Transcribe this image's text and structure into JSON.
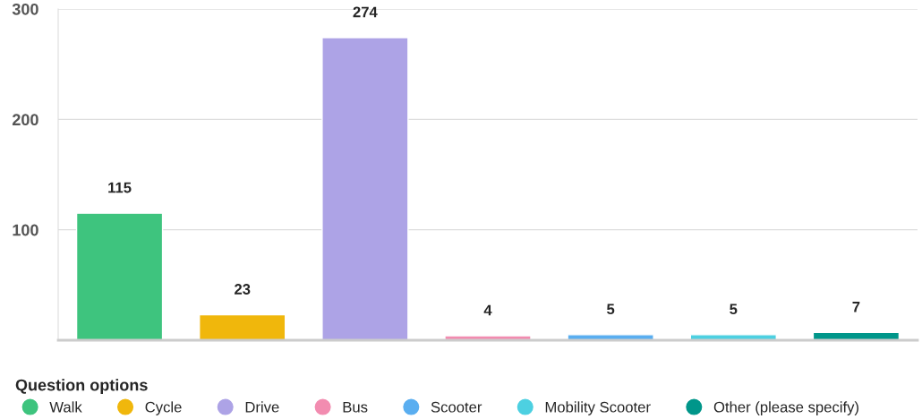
{
  "chart_data": {
    "type": "bar",
    "categories": [
      null,
      null,
      null,
      null,
      null,
      null,
      null
    ],
    "series": [
      {
        "name": "Walk",
        "color": "#3ec47e",
        "values": [
          115,
          null,
          null,
          null,
          null,
          null,
          null
        ]
      },
      {
        "name": "Cycle",
        "color": "#f0b70c",
        "values": [
          null,
          23,
          null,
          null,
          null,
          null,
          null
        ]
      },
      {
        "name": "Drive",
        "color": "#ada3e6",
        "values": [
          null,
          null,
          274,
          null,
          null,
          null,
          null
        ]
      },
      {
        "name": "Bus",
        "color": "#f28cb0",
        "values": [
          null,
          null,
          null,
          4,
          null,
          null,
          null
        ]
      },
      {
        "name": "Scooter",
        "color": "#5aaef0",
        "values": [
          null,
          null,
          null,
          null,
          5,
          null,
          null
        ]
      },
      {
        "name": "Mobility Scooter",
        "color": "#4dd0e1",
        "values": [
          null,
          null,
          null,
          null,
          null,
          5,
          null
        ]
      },
      {
        "name": "Other (please specify)",
        "color": "#00968a",
        "values": [
          null,
          null,
          null,
          null,
          null,
          null,
          7
        ]
      }
    ],
    "ylim": [
      0,
      300
    ],
    "yticks": [
      100,
      200,
      300
    ],
    "grid": "y",
    "data_labels": true,
    "tick_labels": "y",
    "legend": "bottom",
    "legend_title": "Question options"
  }
}
